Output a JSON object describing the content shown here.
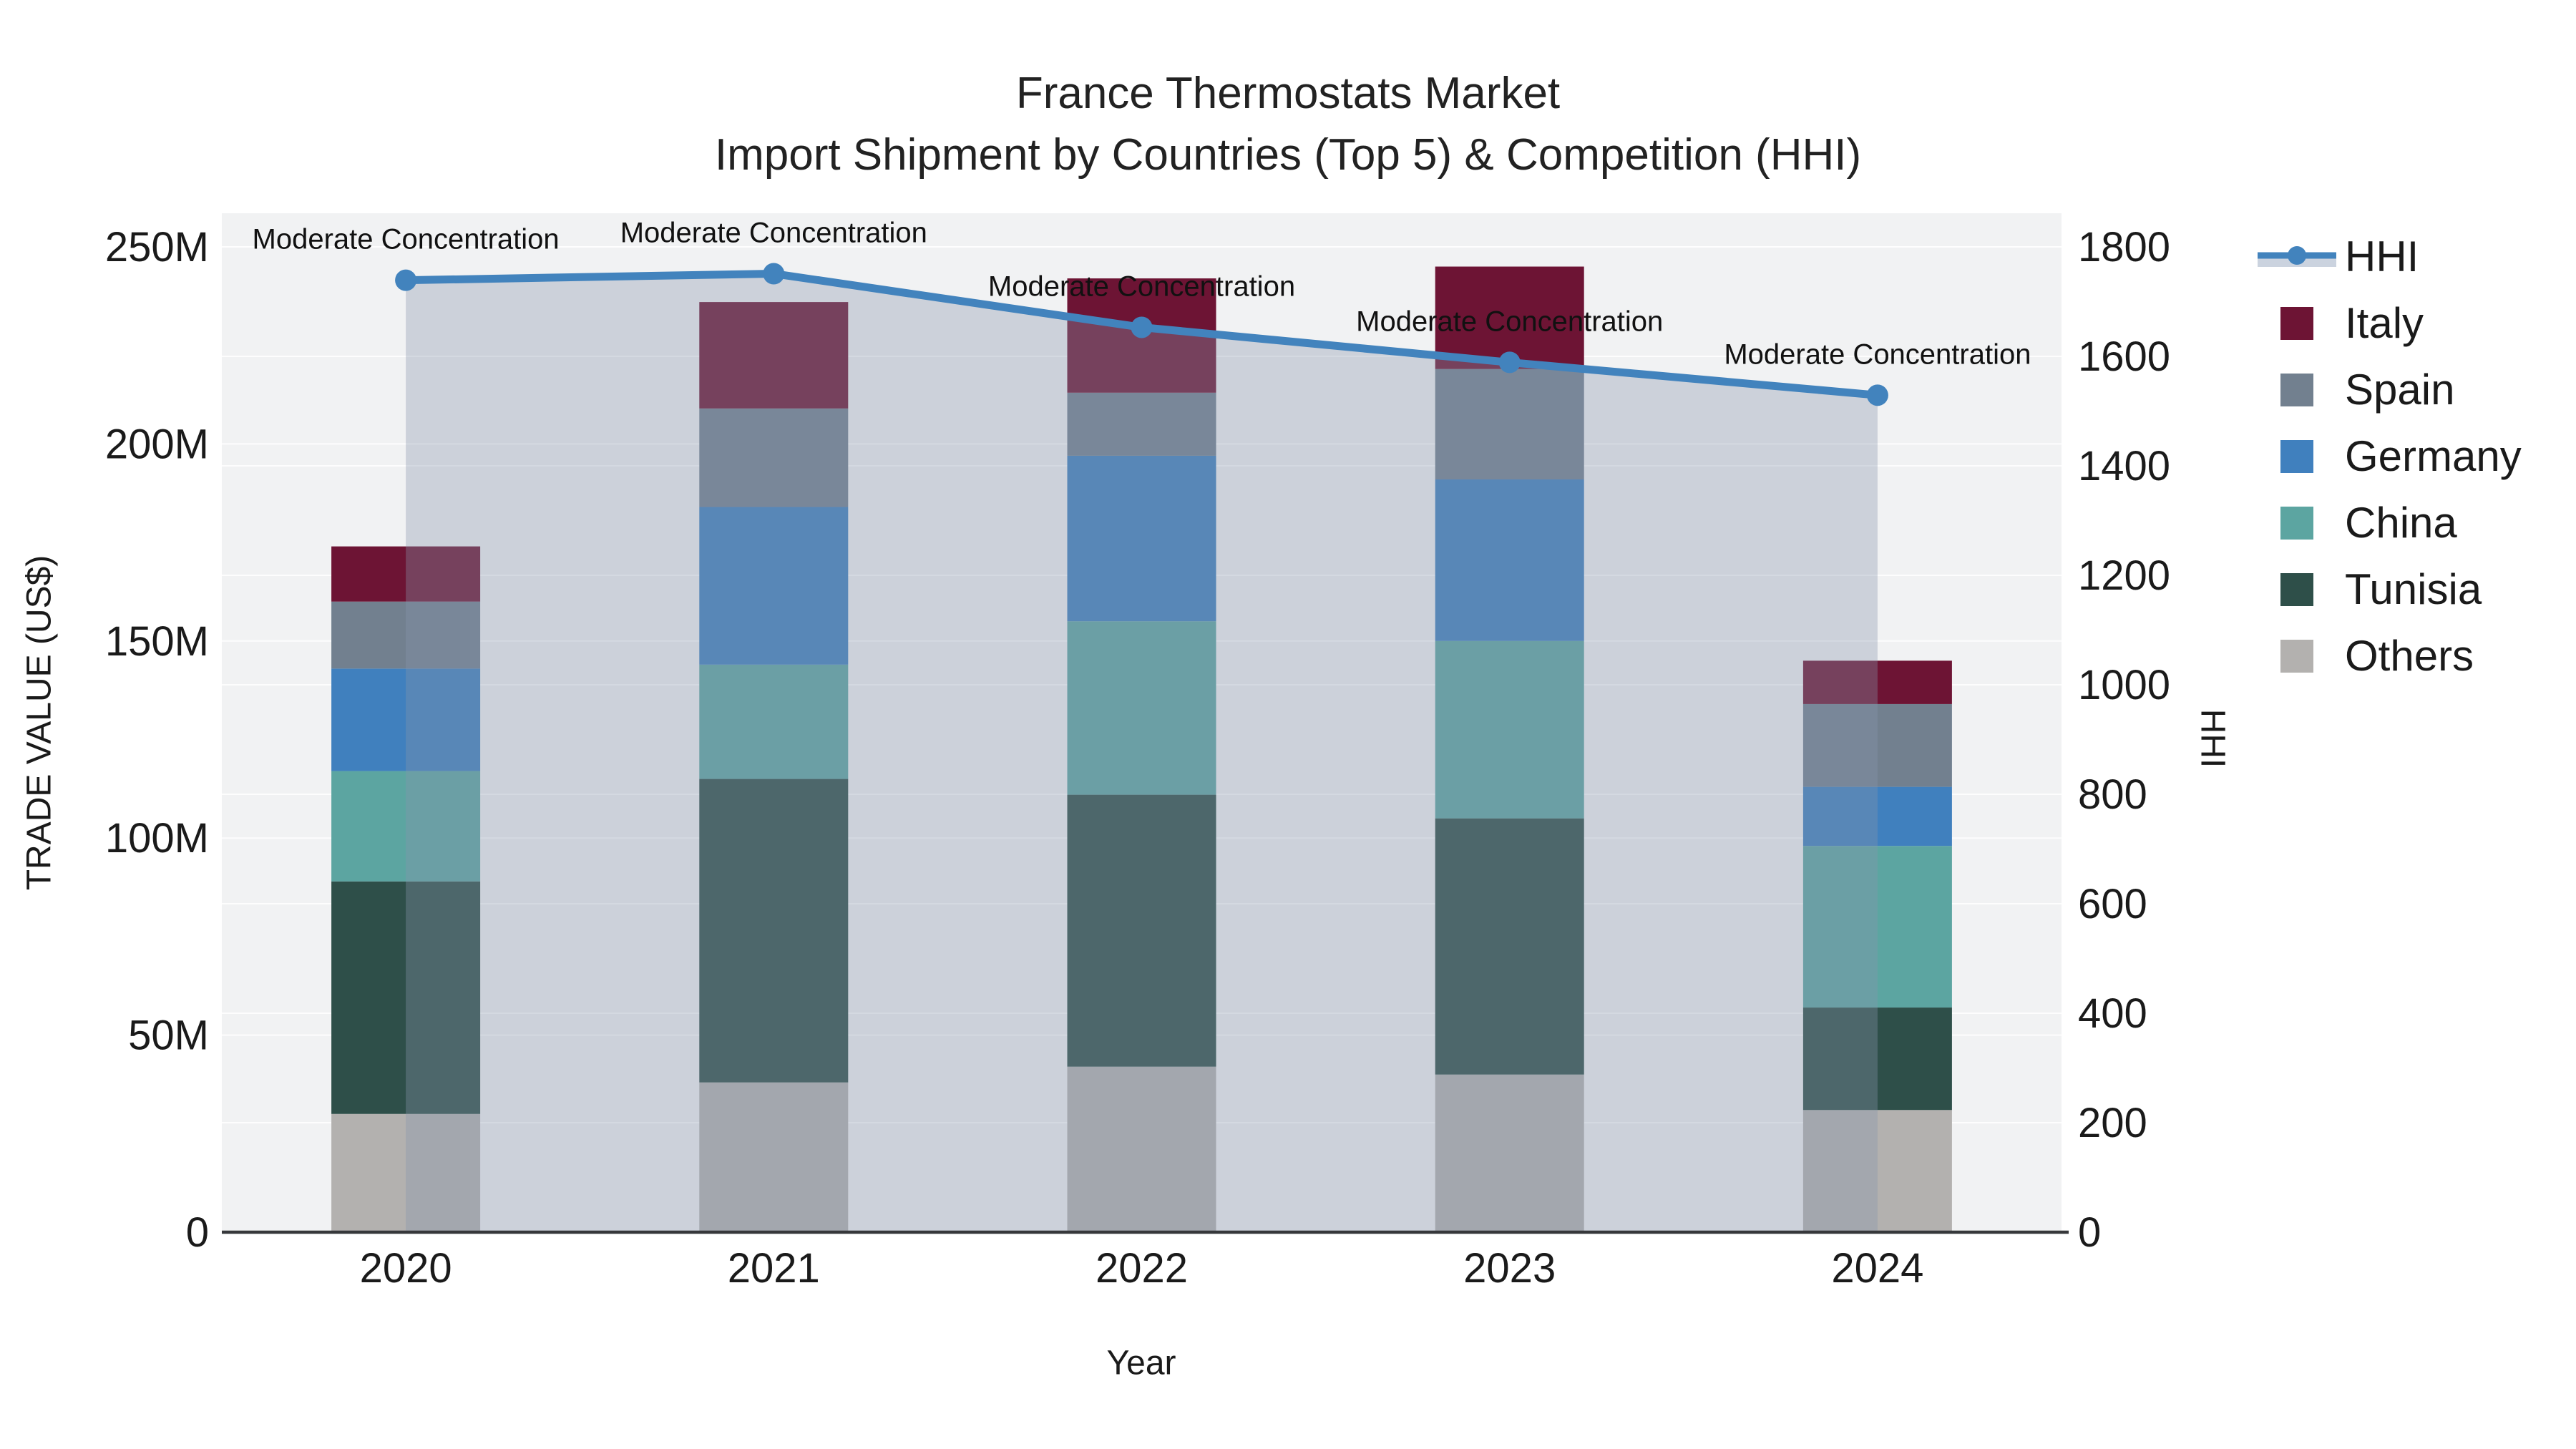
{
  "title": {
    "line1": "France Thermostats Market",
    "line2": "Import Shipment by Countries (Top 5) & Competition (HHI)"
  },
  "axes": {
    "x": {
      "title": "Year",
      "tick_labels": [
        "2020",
        "2021",
        "2022",
        "2023",
        "2024"
      ]
    },
    "y_left": {
      "title": "TRADE VALUE (US$)",
      "tick_labels": [
        "0",
        "50M",
        "100M",
        "150M",
        "200M",
        "250M"
      ],
      "tick_values": [
        0,
        50,
        100,
        150,
        200,
        250
      ],
      "range_millions": [
        0,
        250
      ]
    },
    "y_right": {
      "title": "HHI",
      "tick_labels": [
        "0",
        "200",
        "400",
        "600",
        "800",
        "1000",
        "1200",
        "1400",
        "1600",
        "1800"
      ],
      "tick_values": [
        0,
        200,
        400,
        600,
        800,
        1000,
        1200,
        1400,
        1600,
        1800
      ],
      "range": [
        0,
        1800
      ]
    }
  },
  "chart_data": {
    "type": "bar",
    "subtype": "stacked-bars-with-line",
    "unit": "US$ millions",
    "categories": [
      "2020",
      "2021",
      "2022",
      "2023",
      "2024"
    ],
    "series": [
      {
        "name": "Others",
        "color": "#B3B1AF",
        "values": [
          30,
          38,
          42,
          40,
          31
        ]
      },
      {
        "name": "Tunisia",
        "color": "#2E4F49",
        "values": [
          59,
          77,
          69,
          65,
          26
        ]
      },
      {
        "name": "China",
        "color": "#5CA5A1",
        "values": [
          28,
          29,
          44,
          45,
          41
        ]
      },
      {
        "name": "Germany",
        "color": "#4080BE",
        "values": [
          26,
          40,
          42,
          41,
          15
        ]
      },
      {
        "name": "Spain",
        "color": "#72808F",
        "values": [
          17,
          25,
          16,
          28,
          21
        ]
      },
      {
        "name": "Italy",
        "color": "#6D1434",
        "values": [
          14,
          27,
          29,
          26,
          11
        ]
      }
    ],
    "totals_millions": [
      174,
      236,
      242,
      245,
      145
    ],
    "hhi_line": {
      "name": "HHI",
      "color": "#4283BD",
      "area_color": "rgba(134,148,172,0.35)",
      "values": [
        1739,
        1751,
        1653,
        1589,
        1529
      ]
    },
    "annotations": [
      "Moderate Concentration",
      "Moderate Concentration",
      "Moderate Concentration",
      "Moderate Concentration",
      "Moderate Concentration"
    ],
    "legend_position": "right",
    "grid": true
  },
  "legend": {
    "items": [
      {
        "label": "HHI",
        "type": "line",
        "color": "#4283BD",
        "band_color": "#CBD3DF"
      },
      {
        "label": "Italy",
        "type": "square",
        "color": "#6D1434"
      },
      {
        "label": "Spain",
        "type": "square",
        "color": "#72808F"
      },
      {
        "label": "Germany",
        "type": "square",
        "color": "#4080BE"
      },
      {
        "label": "China",
        "type": "square",
        "color": "#5CA5A1"
      },
      {
        "label": "Tunisia",
        "type": "square",
        "color": "#2E4F49"
      },
      {
        "label": "Others",
        "type": "square",
        "color": "#B3B1AF"
      }
    ]
  },
  "style": {
    "plot_bg": "#F1F2F3",
    "grid_color": "#FFFFFF",
    "axis_line_color": "#36383B",
    "tick_text_color": "#1a1a1a",
    "annotation_color": "#111111"
  }
}
